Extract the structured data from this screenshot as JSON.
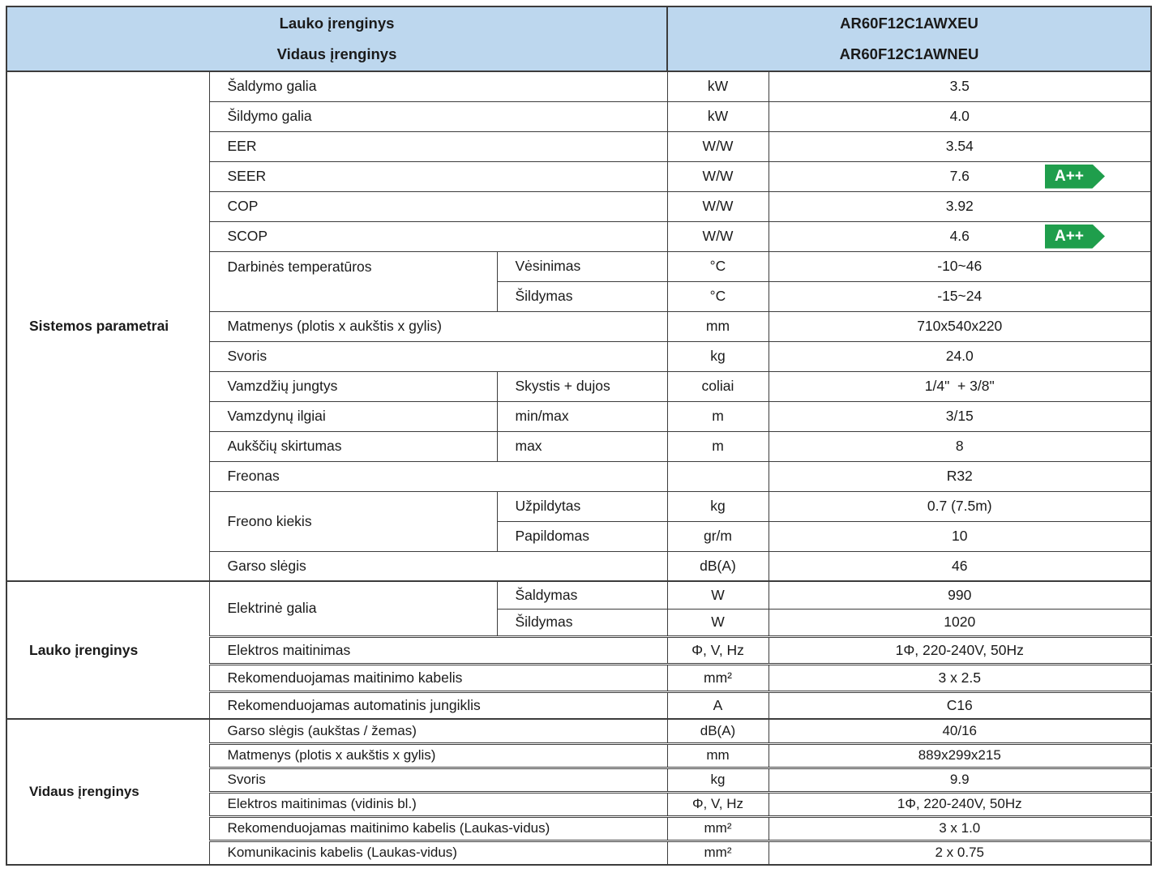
{
  "header": {
    "left_line1": "Lauko įrenginys",
    "left_line2": "Vidaus įrenginys",
    "right_line1": "AR60F12C1AWXEU",
    "right_line2": "AR60F12C1AWNEU"
  },
  "sections": {
    "system": {
      "label": "Sistemos parametrai"
    },
    "outdoor": {
      "label": "Lauko įrenginys"
    },
    "indoor": {
      "label": "Vidaus įrenginys"
    }
  },
  "colors": {
    "header_bg": "#bdd7ee",
    "border": "#3c3c3c",
    "badge_green": "#1f9e4c"
  },
  "rows": [
    {
      "param": "Šaldymo galia",
      "unit": "kW",
      "value": "3.5"
    },
    {
      "param": "Šildymo galia",
      "unit": "kW",
      "value": "4.0"
    },
    {
      "param": "EER",
      "unit": "W/W",
      "value": "3.54"
    },
    {
      "param": "SEER",
      "unit": "W/W",
      "value": "7.6",
      "badge": "A++"
    },
    {
      "param": "COP",
      "unit": "W/W",
      "value": "3.92"
    },
    {
      "param": "SCOP",
      "unit": "W/W",
      "value": "4.6",
      "badge": "A++"
    },
    {
      "param": "Darbinės temperatūros",
      "sub": "Vėsinimas",
      "unit": "°C",
      "value": "-10~46"
    },
    {
      "sub": "Šildymas",
      "unit": "°C",
      "value": "-15~24"
    },
    {
      "param": "Matmenys (plotis x aukštis x gylis)",
      "unit": "mm",
      "value": "710x540x220"
    },
    {
      "param": "Svoris",
      "unit": "kg",
      "value": "24.0"
    },
    {
      "param": "Vamzdžių jungtys",
      "sub": "Skystis + dujos",
      "unit": "coliai",
      "value": "1/4\"  + 3/8\""
    },
    {
      "param": "Vamzdynų ilgiai",
      "sub": "min/max",
      "unit": "m",
      "value": "3/15"
    },
    {
      "param": "Aukščių skirtumas",
      "sub": "max",
      "unit": "m",
      "value": "8"
    },
    {
      "param": "Freonas",
      "unit": "",
      "value": "R32"
    },
    {
      "param": "Freono kiekis",
      "sub": "Užpildytas",
      "unit": "kg",
      "value": "0.7 (7.5m)"
    },
    {
      "sub": "Papildomas",
      "unit": "gr/m",
      "value": "10"
    },
    {
      "param": "Garso slėgis",
      "unit": "dB(A)",
      "value": "46"
    },
    {
      "param": "Elektrinė galia",
      "sub": "Šaldymas",
      "unit": "W",
      "value": "990"
    },
    {
      "sub": "Šildymas",
      "unit": "W",
      "value": "1020"
    },
    {
      "param": "Elektros maitinimas",
      "unit": "Φ, V, Hz",
      "value": "1Φ, 220-240V, 50Hz"
    },
    {
      "param": "Rekomenduojamas maitinimo kabelis",
      "unit": "mm²",
      "value": "3 x 2.5"
    },
    {
      "param": "Rekomenduojamas automatinis jungiklis",
      "unit": "A",
      "value": "C16"
    },
    {
      "param": "Garso slėgis (aukštas / žemas)",
      "unit": "dB(A)",
      "value": "40/16"
    },
    {
      "param": "Matmenys (plotis x aukštis x gylis)",
      "unit": "mm",
      "value": "889x299x215"
    },
    {
      "param": "Svoris",
      "unit": "kg",
      "value": "9.9"
    },
    {
      "param": "Elektros maitinimas (vidinis bl.)",
      "unit": "Φ, V, Hz",
      "value": "1Φ, 220-240V, 50Hz"
    },
    {
      "param": "Rekomenduojamas maitinimo kabelis (Laukas-vidus)",
      "unit": "mm²",
      "value": "3 x 1.0"
    },
    {
      "param": "Komunikacinis kabelis (Laukas-vidus)",
      "unit": "mm²",
      "value": "2 x 0.75"
    }
  ]
}
